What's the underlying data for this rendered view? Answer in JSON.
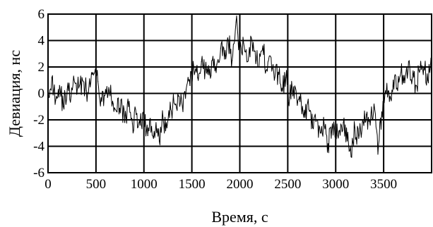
{
  "chart_data": {
    "type": "line",
    "xlabel": "Время, с",
    "ylabel": "Девиация, нс",
    "xlim": [
      0,
      4000
    ],
    "ylim": [
      -6,
      6
    ],
    "x_ticks": [
      "0",
      "500",
      "1000",
      "1500",
      "2000",
      "2500",
      "3000",
      "3500"
    ],
    "y_ticks": [
      "6",
      "4",
      "2",
      "0",
      "-2",
      "-4",
      "-6"
    ],
    "x_tick_values": [
      0,
      500,
      1000,
      1500,
      2000,
      2500,
      3000,
      3500
    ],
    "y_tick_values": [
      6,
      4,
      2,
      0,
      -2,
      -4,
      -6
    ],
    "grid": true,
    "series": [
      {
        "x": [
          0,
          40,
          80,
          120,
          160,
          200,
          240,
          280,
          320,
          360,
          400,
          440,
          480,
          520,
          560,
          600,
          640,
          680,
          720,
          760,
          800,
          840,
          880,
          920,
          960,
          1000,
          1040,
          1080,
          1120,
          1160,
          1200,
          1240,
          1280,
          1320,
          1360,
          1400,
          1440,
          1480,
          1520,
          1560,
          1600,
          1640,
          1680,
          1720,
          1760,
          1800,
          1840,
          1880,
          1920,
          1960,
          2000,
          2040,
          2080,
          2120,
          2160,
          2200,
          2240,
          2280,
          2320,
          2360,
          2400,
          2440,
          2480,
          2520,
          2560,
          2600,
          2640,
          2680,
          2720,
          2760,
          2800,
          2840,
          2880,
          2920,
          2960,
          3000,
          3040,
          3080,
          3120,
          3160,
          3200,
          3240,
          3280,
          3320,
          3360,
          3400,
          3440,
          3480,
          3520,
          3560,
          3600,
          3640,
          3680,
          3720,
          3760,
          3800,
          3840,
          3880,
          3920,
          3960,
          4000
        ],
        "values": [
          0.2,
          1.2,
          -0.5,
          0.6,
          -1.0,
          0.3,
          -0.2,
          0.8,
          0.4,
          1.0,
          0.2,
          0.5,
          1.5,
          0.9,
          -0.6,
          0.3,
          0.1,
          -0.8,
          -1.4,
          -0.5,
          -2.2,
          -1.0,
          -2.3,
          -1.6,
          -2.4,
          -1.8,
          -3.2,
          -2.5,
          -2.8,
          -3.6,
          -1.9,
          -2.6,
          -1.2,
          -0.8,
          -0.2,
          -0.9,
          0.3,
          0.6,
          2.0,
          1.2,
          2.4,
          1.8,
          1.4,
          2.8,
          2.2,
          3.4,
          2.6,
          4.0,
          2.5,
          5.4,
          3.0,
          3.8,
          2.4,
          4.2,
          3.2,
          2.0,
          3.6,
          1.8,
          2.8,
          1.0,
          1.6,
          0.4,
          1.2,
          -0.3,
          0.5,
          -0.9,
          -0.6,
          -1.8,
          -1.2,
          -2.6,
          -2.0,
          -3.0,
          -2.4,
          -3.8,
          -2.6,
          -3.2,
          -2.8,
          -2.2,
          -3.6,
          -4.8,
          -2.6,
          -3.4,
          -2.0,
          -1.6,
          -2.4,
          -0.8,
          -4.6,
          -1.4,
          0.2,
          -0.6,
          1.0,
          0.4,
          1.6,
          0.8,
          2.4,
          1.2,
          0.6,
          1.8,
          2.0,
          1.0,
          2.2
        ]
      }
    ]
  }
}
